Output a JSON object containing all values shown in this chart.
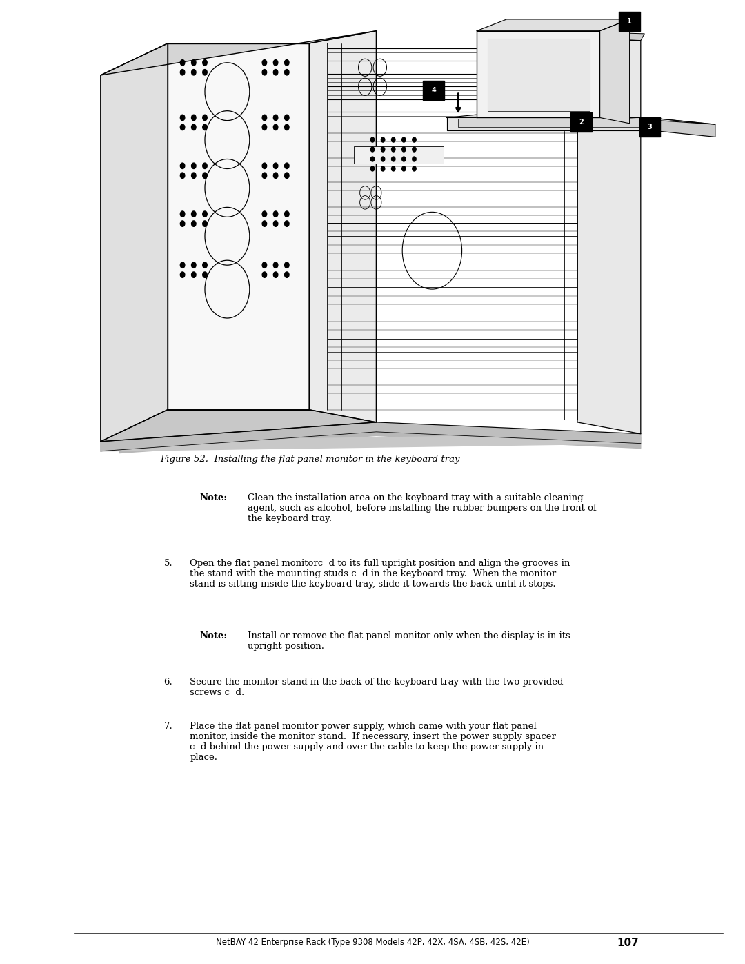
{
  "bg_color": "#ffffff",
  "fig_width": 10.8,
  "fig_height": 13.97,
  "figure_caption": "Figure 52.  Installing the flat panel monitor in the keyboard tray",
  "note1_label": "Note:",
  "note1_text": "Clean the installation area on the keyboard tray with a suitable cleaning\nagent, such as alcohol, before installing the rubber bumpers on the front of\nthe keyboard tray.",
  "item5_num": "5.",
  "item5_text": "Open the flat panel monitorc  d to its full upright position and align the grooves in\nthe stand with the mounting studs c  d in the keyboard tray.  When the monitor\nstand is sitting inside the keyboard tray, slide it towards the back until it stops.",
  "note2_label": "Note:",
  "note2_text": "Install or remove the flat panel monitor only when the display is in its\nupright position.",
  "item6_num": "6.",
  "item6_text": "Secure the monitor stand in the back of the keyboard tray with the two provided\nscrews c  d.",
  "item7_num": "7.",
  "item7_text": "Place the flat panel monitor power supply, which came with your flat panel\nmonitor, inside the monitor stand.  If necessary, insert the power supply spacer\nc  d behind the power supply and over the cable to keep the power supply in\nplace.",
  "footer_text": "NetBAY 42 Enterprise Rack (Type 9308 Models 42P, 42X, 4SA, 4SB, 42S, 42E)",
  "footer_page": "107",
  "text_color": "#000000"
}
